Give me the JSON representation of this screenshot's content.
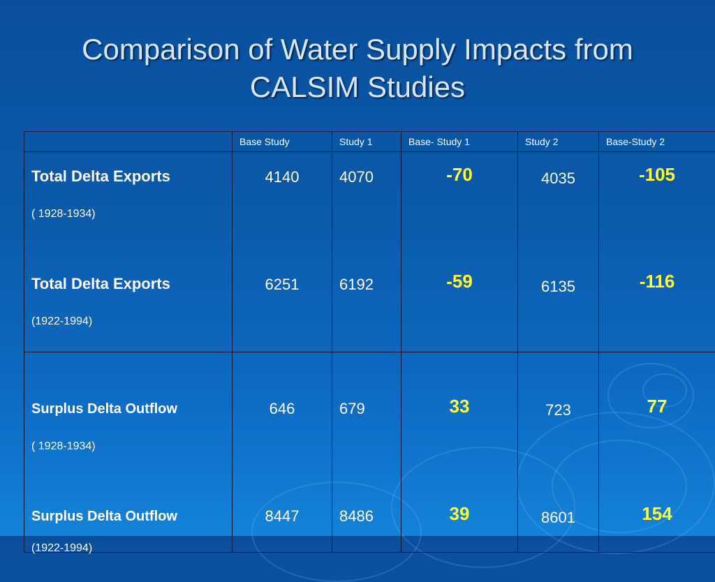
{
  "title_line1": "Comparison of Water Supply Impacts from",
  "title_line2": "CALSIM Studies",
  "columns": [
    "",
    "Base Study",
    "Study 1",
    "Base- Study 1",
    "Study 2",
    "Base-Study 2"
  ],
  "groups": [
    {
      "rows": [
        {
          "label": "Total Delta Exports",
          "period": "( 1928-1934)",
          "base": "4140",
          "study1": "4070",
          "diff1": "-70",
          "study2": "4035",
          "diff2": "-105"
        },
        {
          "label": "Total Delta Exports",
          "period": "(1922-1994)",
          "base": "6251",
          "study1": "6192",
          "diff1": "-59",
          "study2": "6135",
          "diff2": "-116"
        }
      ]
    },
    {
      "rows": [
        {
          "label": "Surplus Delta Outflow",
          "period": "( 1928-1934)",
          "base": "646",
          "study1": "679",
          "diff1": "33",
          "study2": "723",
          "diff2": "77"
        },
        {
          "label": "Surplus Delta Outflow",
          "period": "(1922-1994)",
          "base": "8447",
          "study1": "8486",
          "diff1": "39",
          "study2": "8601",
          "diff2": "154"
        }
      ]
    }
  ],
  "colors": {
    "background": "#0b5aab",
    "title": "#d6e6f7",
    "text": "#ffffff",
    "difference": "#ffff33",
    "border": "#05142e"
  }
}
